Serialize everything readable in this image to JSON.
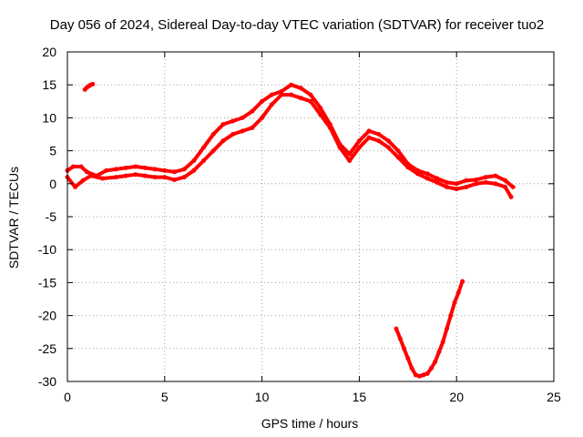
{
  "chart_data": {
    "type": "scatter",
    "title": "Day 056 of 2024, Sidereal Day-to-day VTEC variation (SDTVAR) for receiver tuo2",
    "xlabel": "GPS time / hours",
    "ylabel": "SDTVAR / TECUs",
    "xlim": [
      0,
      25
    ],
    "ylim": [
      -30,
      20
    ],
    "xticks": [
      0,
      5,
      10,
      15,
      20,
      25
    ],
    "yticks": [
      -30,
      -25,
      -20,
      -15,
      -10,
      -5,
      0,
      5,
      10,
      15,
      20
    ],
    "grid": true,
    "series_color": "#ff0000",
    "series": [
      {
        "name": "main-trace-a",
        "x": [
          0.0,
          0.3,
          0.7,
          1.0,
          1.5,
          2.0,
          2.5,
          3.0,
          3.5,
          4.0,
          4.5,
          5.0,
          5.5,
          6.0,
          6.5,
          7.0,
          7.5,
          8.0,
          8.5,
          9.0,
          9.5,
          10.0,
          10.5,
          11.0,
          11.5,
          12.0,
          12.5,
          13.0,
          13.5,
          14.0,
          14.5,
          15.0,
          15.5,
          16.0,
          16.5,
          17.0,
          17.5,
          18.0,
          18.5,
          19.0,
          19.5,
          20.0,
          20.5,
          21.0,
          21.5,
          22.0,
          22.5,
          22.9
        ],
        "y": [
          2.0,
          2.6,
          2.6,
          1.8,
          1.2,
          2.0,
          2.2,
          2.4,
          2.6,
          2.4,
          2.2,
          2.0,
          1.8,
          2.2,
          3.5,
          5.5,
          7.5,
          9.0,
          9.5,
          10.0,
          11.0,
          12.5,
          13.5,
          14.0,
          15.0,
          14.5,
          13.5,
          11.5,
          9.0,
          6.0,
          4.5,
          6.5,
          8.0,
          7.5,
          6.5,
          5.0,
          3.0,
          2.0,
          1.5,
          0.8,
          0.2,
          0.0,
          0.5,
          0.6,
          1.0,
          1.2,
          0.5,
          -0.5
        ]
      },
      {
        "name": "main-trace-b",
        "x": [
          0.0,
          0.4,
          0.8,
          1.2,
          1.8,
          2.5,
          3.0,
          3.5,
          4.0,
          4.5,
          5.0,
          5.5,
          6.0,
          6.5,
          7.0,
          7.5,
          8.0,
          8.5,
          9.0,
          9.5,
          10.0,
          10.5,
          11.0,
          11.5,
          12.0,
          12.5,
          13.0,
          13.5,
          14.0,
          14.5,
          15.0,
          15.5,
          16.0,
          16.5,
          17.0,
          17.5,
          18.0,
          18.5,
          19.0,
          19.5,
          20.0,
          20.5,
          21.0,
          21.5,
          22.0,
          22.5,
          22.8
        ],
        "y": [
          1.0,
          -0.5,
          0.5,
          1.2,
          0.8,
          1.0,
          1.2,
          1.4,
          1.2,
          1.0,
          1.0,
          0.6,
          1.0,
          2.0,
          3.5,
          5.0,
          6.5,
          7.5,
          8.0,
          8.5,
          10.0,
          12.0,
          13.5,
          13.5,
          13.0,
          12.5,
          10.5,
          8.5,
          5.5,
          3.5,
          5.5,
          7.0,
          6.5,
          5.5,
          4.0,
          2.5,
          1.5,
          0.8,
          0.2,
          -0.5,
          -0.8,
          -0.5,
          0.0,
          0.2,
          0.0,
          -0.5,
          -2.0
        ]
      },
      {
        "name": "short-fragment",
        "x": [
          0.9,
          1.0,
          1.1,
          1.2,
          1.3
        ],
        "y": [
          14.3,
          14.6,
          14.8,
          15.0,
          15.1
        ]
      },
      {
        "name": "u-shaped-trace",
        "x": [
          16.9,
          17.1,
          17.3,
          17.5,
          17.7,
          17.9,
          18.1,
          18.3,
          18.5,
          18.7,
          18.9,
          19.1,
          19.3,
          19.5,
          19.7,
          19.9,
          20.1,
          20.3
        ],
        "y": [
          -22.0,
          -23.5,
          -25.0,
          -26.5,
          -28.0,
          -29.0,
          -29.2,
          -29.0,
          -28.8,
          -28.0,
          -27.0,
          -25.5,
          -24.0,
          -22.0,
          -20.0,
          -18.0,
          -16.5,
          -14.8
        ]
      }
    ]
  }
}
